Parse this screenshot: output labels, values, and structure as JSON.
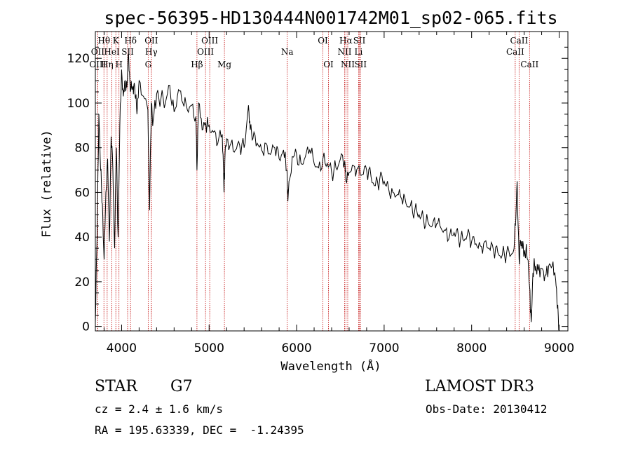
{
  "chart_data": {
    "type": "line",
    "title": "spec-56395-HD130444N001742M01_sp02-065.fits",
    "xlabel": "Wavelength (Å)",
    "ylabel": "Flux (relative)",
    "xlim": [
      3700,
      9100
    ],
    "ylim": [
      -2,
      132
    ],
    "xticks": [
      4000,
      5000,
      6000,
      7000,
      8000,
      9000
    ],
    "yticks": [
      0,
      20,
      40,
      60,
      80,
      100,
      120
    ],
    "grid": false,
    "series": [
      {
        "name": "spectrum",
        "x": [
          3700,
          3720,
          3740,
          3760,
          3780,
          3800,
          3820,
          3840,
          3860,
          3880,
          3900,
          3920,
          3940,
          3960,
          3980,
          4000,
          4020,
          4040,
          4060,
          4080,
          4100,
          4120,
          4140,
          4160,
          4180,
          4200,
          4250,
          4300,
          4320,
          4340,
          4360,
          4400,
          4450,
          4500,
          4550,
          4600,
          4650,
          4700,
          4750,
          4800,
          4850,
          4861,
          4880,
          4920,
          4960,
          5000,
          5050,
          5100,
          5150,
          5170,
          5183,
          5200,
          5250,
          5300,
          5350,
          5400,
          5450,
          5470,
          5500,
          5550,
          5600,
          5650,
          5700,
          5750,
          5800,
          5850,
          5890,
          5900,
          5950,
          6000,
          6050,
          6100,
          6150,
          6200,
          6250,
          6300,
          6350,
          6400,
          6450,
          6500,
          6550,
          6563,
          6600,
          6650,
          6700,
          6750,
          6800,
          6850,
          6900,
          6950,
          7000,
          7050,
          7100,
          7150,
          7200,
          7250,
          7300,
          7350,
          7400,
          7450,
          7500,
          7550,
          7600,
          7650,
          7700,
          7750,
          7800,
          7850,
          7900,
          7950,
          8000,
          8050,
          8100,
          8150,
          8200,
          8250,
          8300,
          8350,
          8400,
          8450,
          8480,
          8500,
          8520,
          8542,
          8560,
          8580,
          8600,
          8620,
          8640,
          8662,
          8680,
          8700,
          8720,
          8740,
          8760,
          8800,
          8840,
          8880,
          8920,
          8960,
          8980,
          9000
        ],
        "y": [
          2,
          40,
          95,
          70,
          55,
          30,
          60,
          75,
          38,
          85,
          70,
          35,
          80,
          40,
          90,
          115,
          103,
          110,
          107,
          122,
          105,
          106,
          108,
          102,
          98,
          110,
          103,
          97,
          52,
          100,
          92,
          104,
          102,
          100,
          108,
          96,
          106,
          100,
          97,
          99,
          94,
          70,
          100,
          88,
          91,
          90,
          87,
          82,
          86,
          60,
          78,
          84,
          82,
          79,
          81,
          80,
          99,
          88,
          84,
          82,
          79,
          82,
          77,
          80,
          75,
          79,
          70,
          56,
          76,
          77,
          73,
          76,
          79,
          73,
          71,
          75,
          73,
          69,
          71,
          75,
          74,
          65,
          69,
          72,
          71,
          68,
          70,
          67,
          63,
          66,
          65,
          62,
          60,
          59,
          57,
          55,
          54,
          52,
          50,
          48,
          47,
          45,
          46,
          44,
          43,
          41,
          42,
          40,
          39,
          41,
          38,
          37,
          36,
          38,
          35,
          34,
          33,
          32,
          33,
          32,
          34,
          45,
          65,
          30,
          38,
          35,
          33,
          34,
          30,
          18,
          2,
          24,
          27,
          25,
          25,
          26,
          23,
          27,
          27,
          21,
          8,
          0
        ]
      }
    ],
    "lines": [
      {
        "label": "Hθ",
        "wave": 3798,
        "row": 1
      },
      {
        "label": "OII",
        "wave": 3727,
        "row": 2
      },
      {
        "label": "OIII",
        "wave": 3727,
        "row": 3
      },
      {
        "label": "K",
        "wave": 3934,
        "row": 1
      },
      {
        "label": "HeI",
        "wave": 3889,
        "row": 2
      },
      {
        "label": "Hη",
        "wave": 3835,
        "row": 3
      },
      {
        "label": "H",
        "wave": 3970,
        "row": 3
      },
      {
        "label": "Hδ",
        "wave": 4102,
        "row": 1
      },
      {
        "label": "SII",
        "wave": 4069,
        "row": 2
      },
      {
        "label": "OII",
        "wave": 4340,
        "row": 1
      },
      {
        "label": "Hγ",
        "wave": 4340,
        "row": 2
      },
      {
        "label": "G",
        "wave": 4304,
        "row": 3
      },
      {
        "label": "OIII",
        "wave": 5007,
        "row": 1
      },
      {
        "label": "OIII",
        "wave": 4959,
        "row": 2
      },
      {
        "label": "Hβ",
        "wave": 4861,
        "row": 3
      },
      {
        "label": "Mg",
        "wave": 5175,
        "row": 3
      },
      {
        "label": "Na",
        "wave": 5893,
        "row": 2
      },
      {
        "label": "OI",
        "wave": 6300,
        "row": 1
      },
      {
        "label": "OI",
        "wave": 6364,
        "row": 3
      },
      {
        "label": "Hα",
        "wave": 6563,
        "row": 1
      },
      {
        "label": "NII",
        "wave": 6548,
        "row": 2
      },
      {
        "label": "NII",
        "wave": 6584,
        "row": 3
      },
      {
        "label": "SII",
        "wave": 6717,
        "row": 1
      },
      {
        "label": "Li",
        "wave": 6708,
        "row": 2
      },
      {
        "label": "SII",
        "wave": 6731,
        "row": 3
      },
      {
        "label": "CaII",
        "wave": 8542,
        "row": 1
      },
      {
        "label": "CaII",
        "wave": 8498,
        "row": 2
      },
      {
        "label": "CaII",
        "wave": 8662,
        "row": 3
      }
    ]
  },
  "info": {
    "class_label": "STAR",
    "subclass": "G7",
    "survey": "LAMOST DR3",
    "cz": "cz = 2.4 ± 1.6 km/s",
    "obs_date": "Obs-Date: 20130412",
    "radec": "RA = 195.63339, DEC =  -1.24395"
  },
  "colors": {
    "spectrum": "#000000",
    "line_marker": "#c00000",
    "axes": "#000000"
  }
}
